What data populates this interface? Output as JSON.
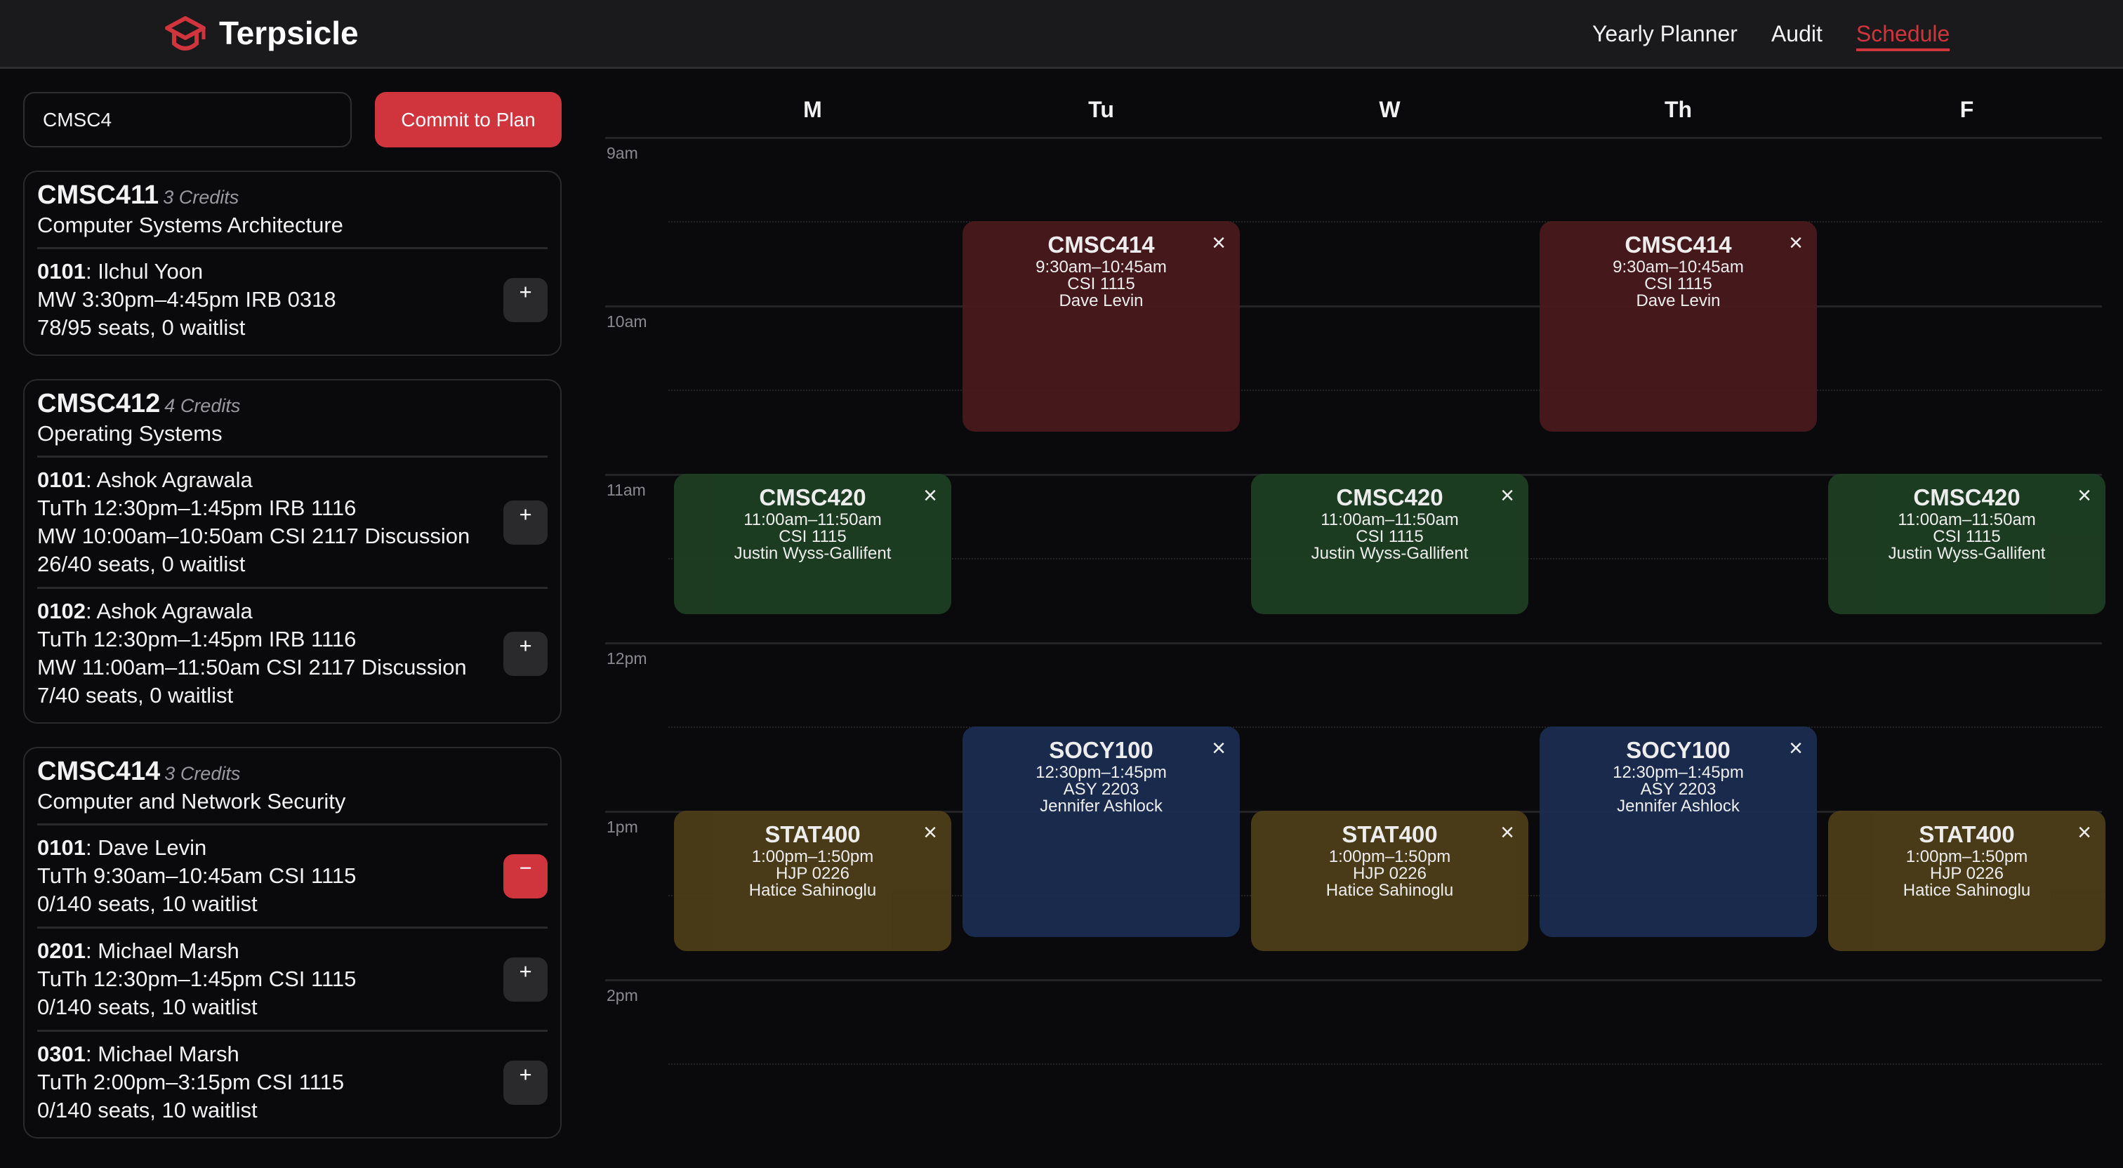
{
  "header": {
    "title": "Terpsicle",
    "logo": "graduation-cap-icon",
    "nav": [
      "Yearly Planner",
      "Audit",
      "Schedule"
    ],
    "active_nav": "Schedule"
  },
  "colors": {
    "accent": "#d0343c",
    "CMSC414": "#4a1a1d",
    "CMSC420": "#1e4023",
    "SOCY100": "#1b2d52",
    "STAT400": "#4e3e19"
  },
  "search": {
    "value": "CMSC4"
  },
  "commit_label": "Commit to Plan",
  "courses": [
    {
      "code": "CMSC411",
      "credits": "3 Credits",
      "title": "Computer Systems Architecture",
      "sections": [
        {
          "id": "0101",
          "instructor": "Ilchul Yoon",
          "lines": [
            "MW 3:30pm–4:45pm IRB 0318"
          ],
          "seats": "78/95 seats, 0 waitlist",
          "action": "+"
        }
      ]
    },
    {
      "code": "CMSC412",
      "credits": "4 Credits",
      "title": "Operating Systems",
      "sections": [
        {
          "id": "0101",
          "instructor": "Ashok Agrawala",
          "lines": [
            "TuTh 12:30pm–1:45pm IRB 1116",
            "MW 10:00am–10:50am CSI 2117 Discussion"
          ],
          "seats": "26/40 seats, 0 waitlist",
          "action": "+"
        },
        {
          "id": "0102",
          "instructor": "Ashok Agrawala",
          "lines": [
            "TuTh 12:30pm–1:45pm IRB 1116",
            "MW 11:00am–11:50am CSI 2117 Discussion"
          ],
          "seats": "7/40 seats, 0 waitlist",
          "action": "+"
        }
      ]
    },
    {
      "code": "CMSC414",
      "credits": "3 Credits",
      "title": "Computer and Network Security",
      "sections": [
        {
          "id": "0101",
          "instructor": "Dave Levin",
          "lines": [
            "TuTh 9:30am–10:45am CSI 1115"
          ],
          "seats": "0/140 seats, 10 waitlist",
          "action": "−"
        },
        {
          "id": "0201",
          "instructor": "Michael Marsh",
          "lines": [
            "TuTh 12:30pm–1:45pm CSI 1115"
          ],
          "seats": "0/140 seats, 10 waitlist",
          "action": "+"
        },
        {
          "id": "0301",
          "instructor": "Michael Marsh",
          "lines": [
            "TuTh 2:00pm–3:15pm CSI 1115"
          ],
          "seats": "0/140 seats, 10 waitlist",
          "action": "+"
        }
      ]
    }
  ],
  "calendar": {
    "days": [
      "M",
      "Tu",
      "W",
      "Th",
      "F"
    ],
    "hours": [
      "9am",
      "10am",
      "11am",
      "12pm",
      "1pm",
      "2pm"
    ],
    "events": [
      {
        "course": "CMSC414",
        "days": [
          "Tu",
          "Th"
        ],
        "time": "9:30am–10:45am",
        "room": "CSI 1115",
        "instructor": "Dave Levin"
      },
      {
        "course": "CMSC420",
        "days": [
          "M",
          "W",
          "F"
        ],
        "time": "11:00am–11:50am",
        "room": "CSI 1115",
        "instructor": "Justin Wyss-Gallifent"
      },
      {
        "course": "SOCY100",
        "days": [
          "Tu",
          "Th"
        ],
        "time": "12:30pm–1:45pm",
        "room": "ASY 2203",
        "instructor": "Jennifer Ashlock"
      },
      {
        "course": "STAT400",
        "days": [
          "M",
          "W",
          "F"
        ],
        "time": "1:00pm–1:50pm",
        "room": "HJP 0226",
        "instructor": "Hatice Sahinoglu"
      }
    ],
    "close_glyph": "×"
  }
}
